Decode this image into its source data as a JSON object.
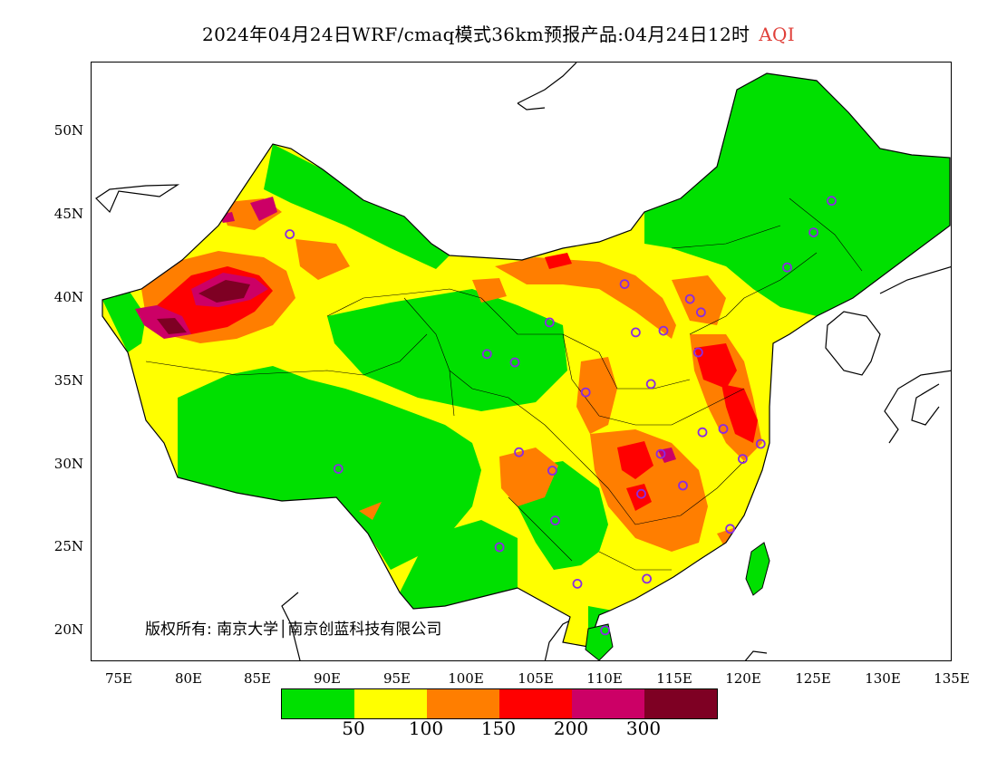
{
  "title": {
    "main": "2024年04月24日WRF/cmaq模式36km预报产品:04月24日12时",
    "pollutant": "AQI"
  },
  "axes": {
    "y_ticks": [
      "50N",
      "45N",
      "40N",
      "35N",
      "30N",
      "25N",
      "20N"
    ],
    "x_ticks": [
      "75E",
      "80E",
      "85E",
      "90E",
      "95E",
      "100E",
      "105E",
      "110E",
      "115E",
      "120E",
      "125E",
      "130E",
      "135E"
    ]
  },
  "copyright": "版权所有: 南京大学│南京创蓝科技有限公司",
  "legend": {
    "colors": [
      "#00e000",
      "#ffff00",
      "#ff7e00",
      "#ff0000",
      "#cc0066",
      "#7e0023"
    ],
    "labels": [
      "50",
      "100",
      "150",
      "200",
      "300"
    ]
  },
  "map": {
    "colors": {
      "good": "#00e000",
      "moderate": "#ffff00",
      "usg": "#ff7e00",
      "unhealthy": "#ff0000",
      "very_unhealthy": "#cc0066",
      "hazardous": "#7e0023",
      "station_marker": "#8a2be2"
    },
    "station_markers": [
      {
        "lon": 87.6,
        "lat": 43.8
      },
      {
        "lon": 91.1,
        "lat": 29.7
      },
      {
        "lon": 101.8,
        "lat": 36.6
      },
      {
        "lon": 103.8,
        "lat": 36.1
      },
      {
        "lon": 106.3,
        "lat": 38.5
      },
      {
        "lon": 111.7,
        "lat": 40.8
      },
      {
        "lon": 112.5,
        "lat": 37.9
      },
      {
        "lon": 114.5,
        "lat": 38.0
      },
      {
        "lon": 116.4,
        "lat": 39.9
      },
      {
        "lon": 117.2,
        "lat": 39.1
      },
      {
        "lon": 117.0,
        "lat": 36.7
      },
      {
        "lon": 113.6,
        "lat": 34.8
      },
      {
        "lon": 108.9,
        "lat": 34.3
      },
      {
        "lon": 104.1,
        "lat": 30.7
      },
      {
        "lon": 106.5,
        "lat": 29.6
      },
      {
        "lon": 114.3,
        "lat": 30.6
      },
      {
        "lon": 117.3,
        "lat": 31.9
      },
      {
        "lon": 118.8,
        "lat": 32.1
      },
      {
        "lon": 121.5,
        "lat": 31.2
      },
      {
        "lon": 120.2,
        "lat": 30.3
      },
      {
        "lon": 112.9,
        "lat": 28.2
      },
      {
        "lon": 115.9,
        "lat": 28.7
      },
      {
        "lon": 119.3,
        "lat": 26.1
      },
      {
        "lon": 113.3,
        "lat": 23.1
      },
      {
        "lon": 108.3,
        "lat": 22.8
      },
      {
        "lon": 106.7,
        "lat": 26.6
      },
      {
        "lon": 102.7,
        "lat": 25.0
      },
      {
        "lon": 110.3,
        "lat": 20.0
      },
      {
        "lon": 123.4,
        "lat": 41.8
      },
      {
        "lon": 125.3,
        "lat": 43.9
      },
      {
        "lon": 126.6,
        "lat": 45.8
      }
    ]
  }
}
